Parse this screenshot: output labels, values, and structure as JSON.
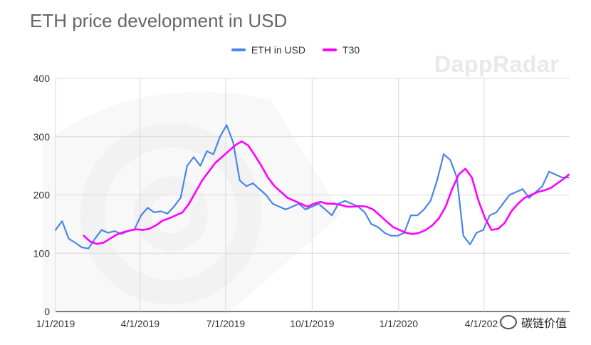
{
  "title": "ETH price development in USD",
  "watermark": "DappRadar",
  "footer_mark": "碳链价值",
  "colors": {
    "eth": "#4a86e8",
    "t30": "#ff00ff",
    "grid": "#d9d9d9",
    "axis": "#333333"
  },
  "chart_data": {
    "type": "line",
    "title": "ETH price development in USD",
    "xlabel": "",
    "ylabel": "",
    "ylim": [
      0,
      400
    ],
    "yticks": [
      0,
      100,
      200,
      300,
      400
    ],
    "xticks": [
      "1/1/2019",
      "4/1/2019",
      "7/1/2019",
      "10/1/2019",
      "1/1/2020",
      "4/1/2020"
    ],
    "legend": "top",
    "grid": true,
    "series": [
      {
        "name": "ETH in USD",
        "x": [
          "2019-01-01",
          "2019-01-08",
          "2019-01-15",
          "2019-01-22",
          "2019-01-29",
          "2019-02-05",
          "2019-02-12",
          "2019-02-19",
          "2019-02-26",
          "2019-03-05",
          "2019-03-12",
          "2019-03-19",
          "2019-03-26",
          "2019-04-02",
          "2019-04-09",
          "2019-04-16",
          "2019-04-23",
          "2019-04-30",
          "2019-05-07",
          "2019-05-14",
          "2019-05-21",
          "2019-05-28",
          "2019-06-04",
          "2019-06-11",
          "2019-06-18",
          "2019-06-25",
          "2019-07-02",
          "2019-07-09",
          "2019-07-16",
          "2019-07-23",
          "2019-07-30",
          "2019-08-06",
          "2019-08-13",
          "2019-08-20",
          "2019-08-27",
          "2019-09-03",
          "2019-09-10",
          "2019-09-17",
          "2019-09-24",
          "2019-10-01",
          "2019-10-08",
          "2019-10-15",
          "2019-10-22",
          "2019-10-29",
          "2019-11-05",
          "2019-11-12",
          "2019-11-19",
          "2019-11-26",
          "2019-12-03",
          "2019-12-10",
          "2019-12-17",
          "2019-12-24",
          "2019-12-31",
          "2020-01-07",
          "2020-01-14",
          "2020-01-21",
          "2020-01-28",
          "2020-02-04",
          "2020-02-11",
          "2020-02-18",
          "2020-02-25",
          "2020-03-03",
          "2020-03-10",
          "2020-03-17",
          "2020-03-24",
          "2020-03-31",
          "2020-04-07",
          "2020-04-14",
          "2020-04-21",
          "2020-04-28",
          "2020-05-05",
          "2020-05-12",
          "2020-05-19",
          "2020-05-26",
          "2020-06-02",
          "2020-06-09",
          "2020-06-16",
          "2020-06-23",
          "2020-06-30"
        ],
        "values": [
          140,
          155,
          125,
          118,
          110,
          108,
          125,
          140,
          135,
          138,
          133,
          138,
          141,
          165,
          178,
          170,
          172,
          168,
          180,
          195,
          250,
          265,
          250,
          275,
          270,
          300,
          320,
          290,
          225,
          215,
          220,
          210,
          200,
          185,
          180,
          175,
          180,
          185,
          175,
          180,
          185,
          175,
          165,
          185,
          190,
          185,
          180,
          170,
          150,
          145,
          135,
          130,
          130,
          135,
          165,
          165,
          175,
          190,
          225,
          270,
          260,
          230,
          130,
          115,
          135,
          140,
          165,
          170,
          185,
          200,
          205,
          210,
          195,
          205,
          215,
          240,
          235,
          230,
          230
        ]
      },
      {
        "name": "T30",
        "x": [
          "2019-01-31",
          "2019-02-07",
          "2019-02-14",
          "2019-02-21",
          "2019-02-28",
          "2019-03-07",
          "2019-03-14",
          "2019-03-21",
          "2019-03-28",
          "2019-04-04",
          "2019-04-11",
          "2019-04-18",
          "2019-04-25",
          "2019-05-02",
          "2019-05-09",
          "2019-05-16",
          "2019-05-23",
          "2019-05-30",
          "2019-06-06",
          "2019-06-13",
          "2019-06-20",
          "2019-06-27",
          "2019-07-04",
          "2019-07-11",
          "2019-07-18",
          "2019-07-25",
          "2019-08-01",
          "2019-08-08",
          "2019-08-15",
          "2019-08-22",
          "2019-08-29",
          "2019-09-05",
          "2019-09-12",
          "2019-09-19",
          "2019-09-26",
          "2019-10-03",
          "2019-10-10",
          "2019-10-17",
          "2019-10-24",
          "2019-10-31",
          "2019-11-07",
          "2019-11-14",
          "2019-11-21",
          "2019-11-28",
          "2019-12-05",
          "2019-12-12",
          "2019-12-19",
          "2019-12-26",
          "2020-01-02",
          "2020-01-09",
          "2020-01-16",
          "2020-01-23",
          "2020-01-30",
          "2020-02-06",
          "2020-02-13",
          "2020-02-20",
          "2020-02-27",
          "2020-03-05",
          "2020-03-12",
          "2020-03-19",
          "2020-03-26",
          "2020-04-02",
          "2020-04-09",
          "2020-04-16",
          "2020-04-23",
          "2020-04-30",
          "2020-05-07",
          "2020-05-14",
          "2020-05-21",
          "2020-05-28",
          "2020-06-04",
          "2020-06-11",
          "2020-06-18",
          "2020-06-25",
          "2020-06-30"
        ],
        "values": [
          130,
          120,
          116,
          118,
          125,
          132,
          136,
          139,
          141,
          140,
          142,
          148,
          156,
          160,
          165,
          170,
          185,
          205,
          225,
          240,
          255,
          265,
          275,
          285,
          292,
          285,
          268,
          250,
          230,
          215,
          205,
          195,
          190,
          185,
          180,
          185,
          188,
          185,
          185,
          183,
          180,
          180,
          181,
          180,
          175,
          165,
          155,
          145,
          140,
          135,
          133,
          135,
          140,
          148,
          160,
          180,
          210,
          235,
          245,
          230,
          190,
          160,
          140,
          142,
          152,
          172,
          185,
          195,
          200,
          205,
          208,
          212,
          220,
          228,
          235
        ]
      }
    ]
  }
}
